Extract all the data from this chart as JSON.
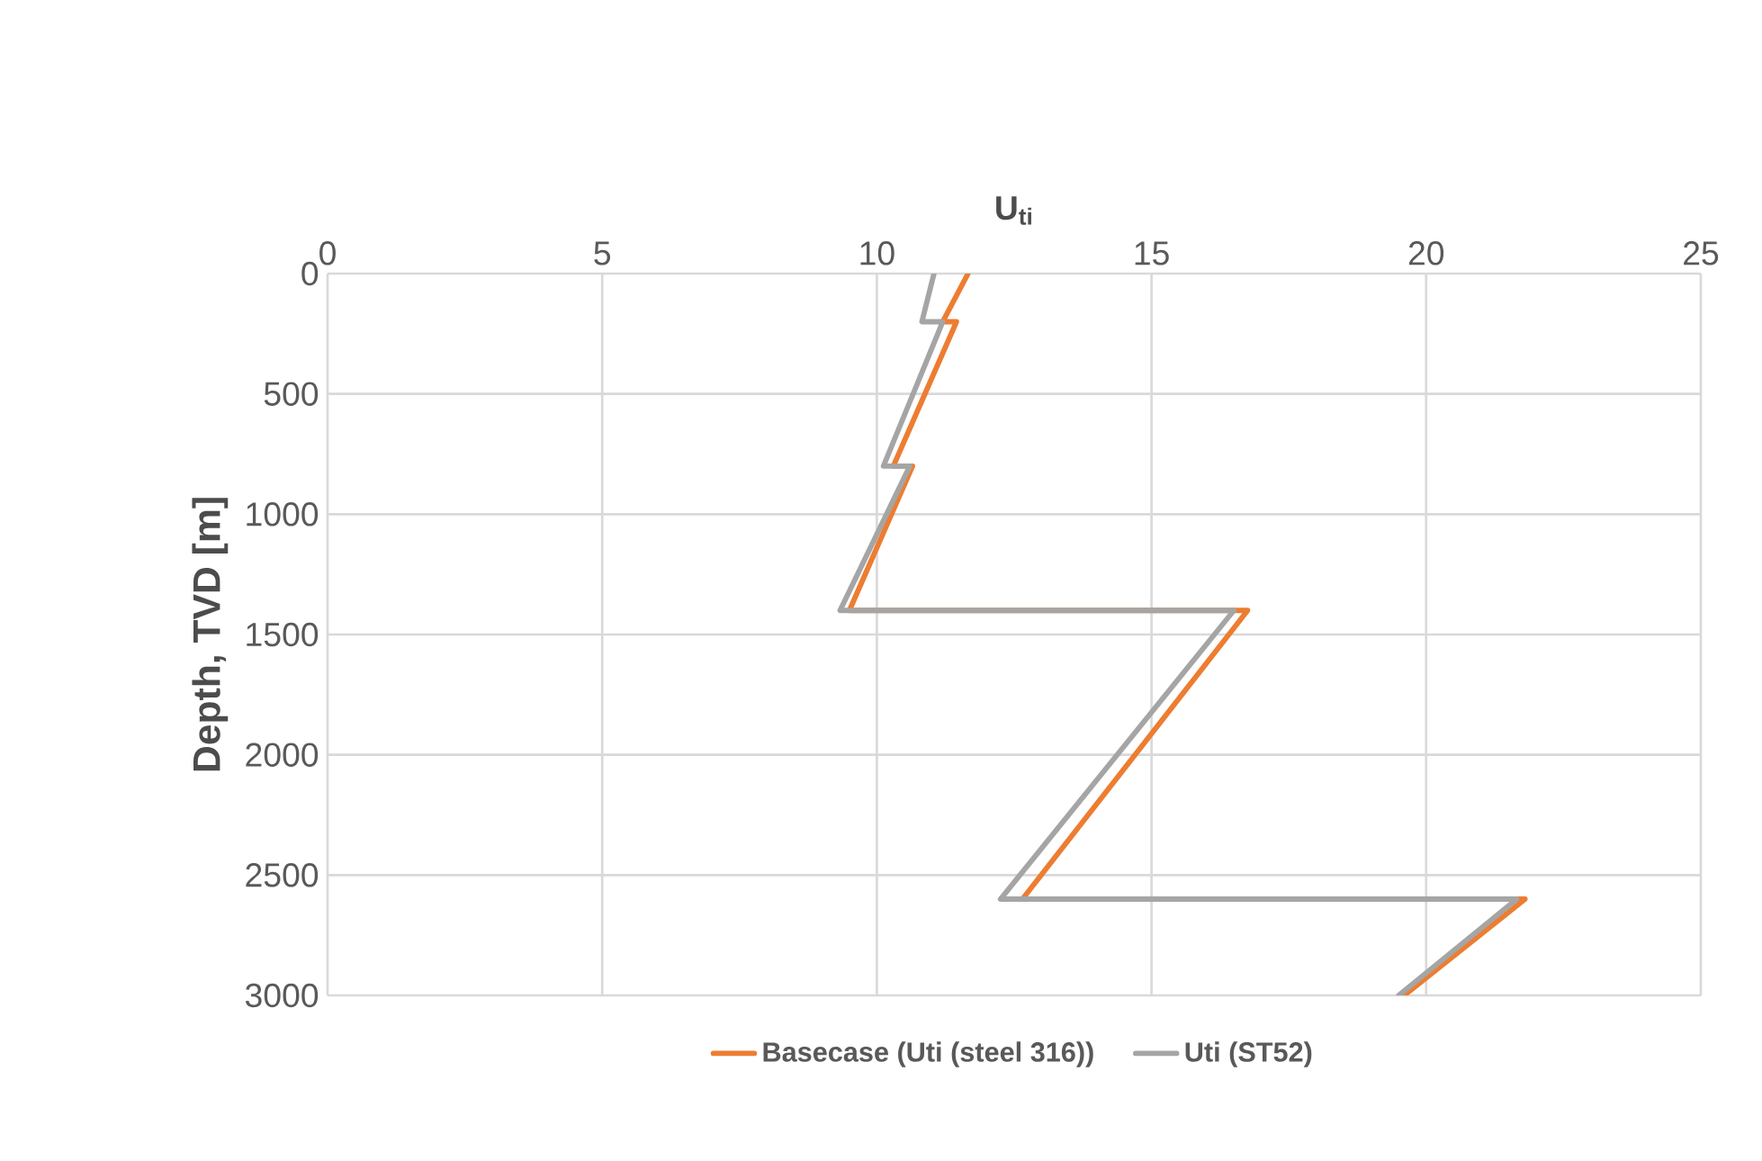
{
  "chart_data": {
    "type": "line",
    "xlabel": "U$_{ti}$",
    "ylabel": "Depth, TVD [m]",
    "xlim": [
      0,
      25
    ],
    "xticks": [
      0,
      5,
      10,
      15,
      20,
      25
    ],
    "ylim": [
      3000,
      0
    ],
    "yticks": [
      0,
      500,
      1000,
      1500,
      2000,
      2500,
      3000
    ],
    "grid": true,
    "legend": "bottom",
    "line_style": "solid",
    "marker": "none",
    "series": [
      {
        "name": "Basecase (Uti (steel 316))",
        "color": "#ed7d31",
        "x": [
          11.66,
          11.2,
          11.45,
          10.3,
          10.65,
          9.5,
          16.75,
          12.65,
          21.8,
          19.6
        ],
        "values": [
          0,
          200,
          200,
          800,
          800,
          1400,
          1400,
          2600,
          2600,
          3000
        ]
      },
      {
        "name": "Uti (ST52)",
        "color": "#a5a5a5",
        "x": [
          11.04,
          10.82,
          11.2,
          10.12,
          10.6,
          9.33,
          16.5,
          12.25,
          21.65,
          19.5
        ],
        "values": [
          0,
          200,
          200,
          800,
          800,
          1400,
          1400,
          2600,
          2600,
          3000
        ]
      }
    ]
  }
}
